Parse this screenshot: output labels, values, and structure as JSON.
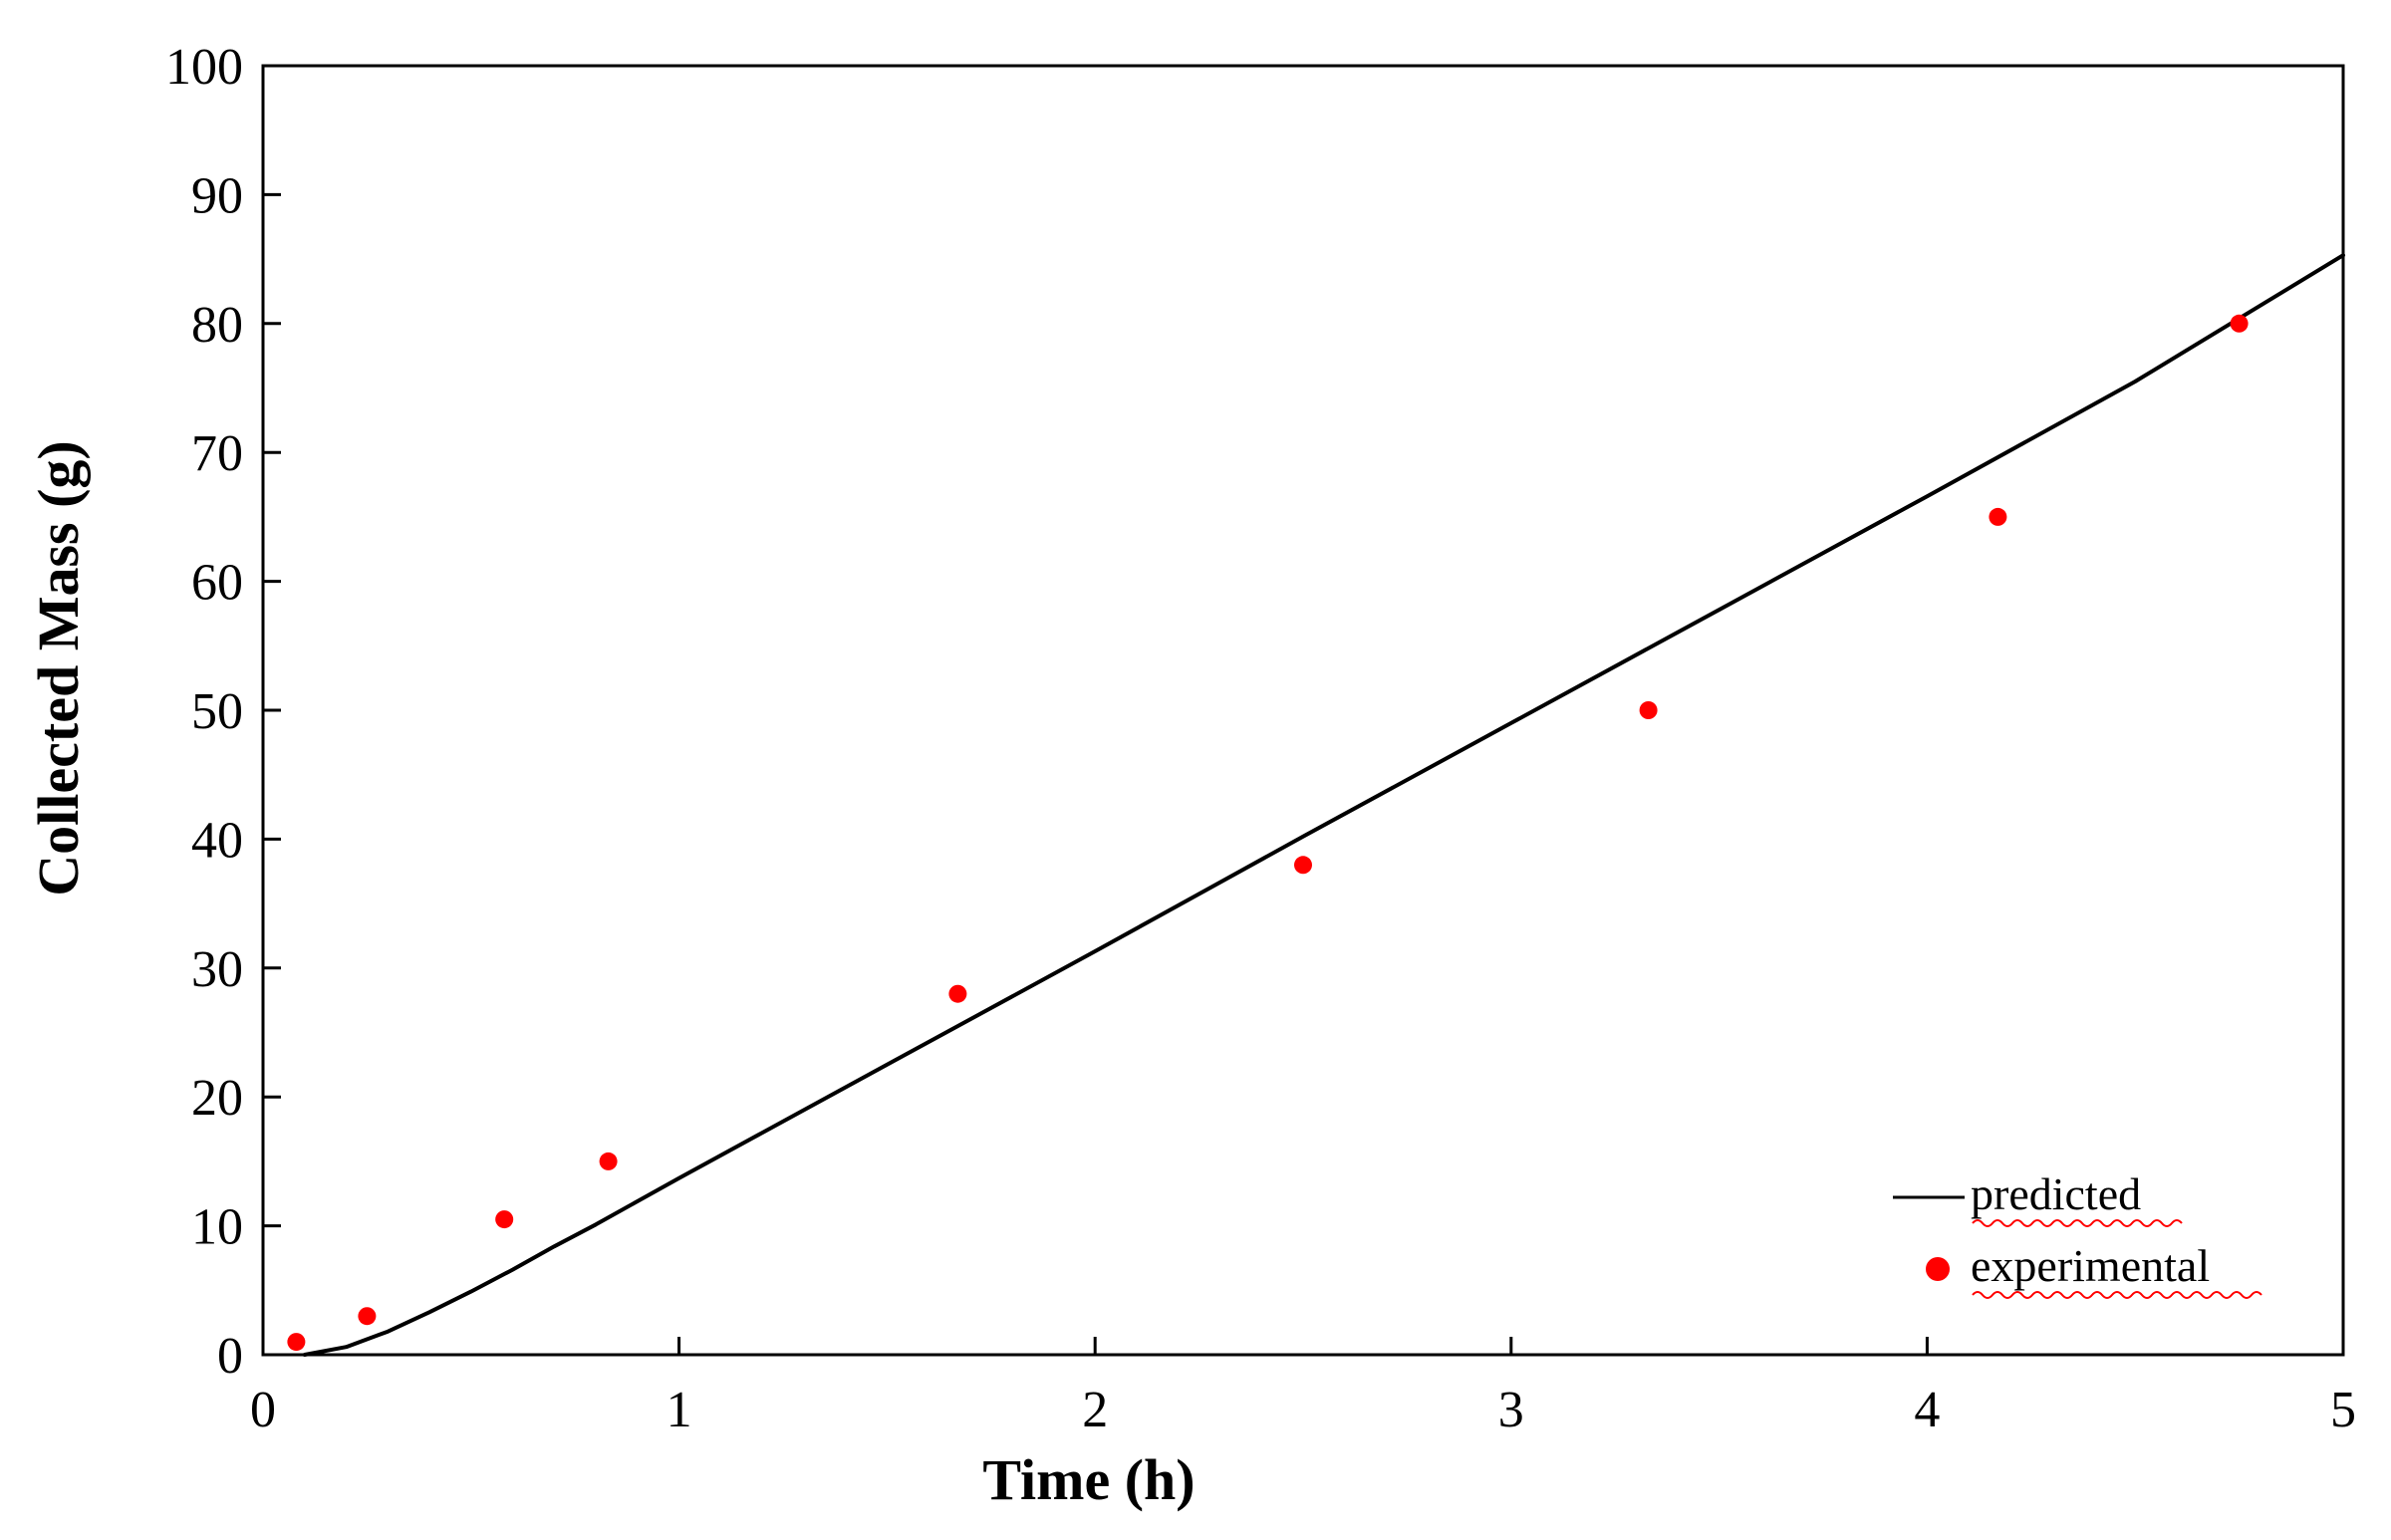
{
  "chart_data": {
    "type": "scatter",
    "title": "",
    "xlabel": "Time (h)",
    "ylabel": "Collected Mass (g)",
    "xlim": [
      0,
      5
    ],
    "ylim": [
      0,
      100
    ],
    "xticks": [
      0,
      1,
      2,
      3,
      4,
      5
    ],
    "yticks": [
      0,
      10,
      20,
      30,
      40,
      50,
      60,
      70,
      80,
      90,
      100
    ],
    "grid": false,
    "legend": {
      "placement": "bottom-right",
      "entries": [
        {
          "label": "predicted",
          "marker": "line",
          "color": "#000000"
        },
        {
          "label": "experimental",
          "marker": "circle",
          "color": "#ff0000"
        }
      ]
    },
    "series": [
      {
        "name": "predicted",
        "style": "line",
        "color": "#000000",
        "x": [
          0.1,
          0.2,
          0.3,
          0.4,
          0.5,
          0.6,
          0.7,
          0.8,
          0.9,
          1.0,
          1.5,
          2.0,
          2.5,
          3.0,
          3.5,
          4.0,
          4.5,
          5.0
        ],
        "y": [
          0,
          0.6,
          1.8,
          3.3,
          4.9,
          6.6,
          8.4,
          10.1,
          11.9,
          13.7,
          22.5,
          31.3,
          40.2,
          49.0,
          57.8,
          66.6,
          75.5,
          85.3
        ]
      },
      {
        "name": "experimental",
        "style": "scatter",
        "color": "#ff0000",
        "x": [
          0.08,
          0.25,
          0.58,
          0.83,
          1.67,
          2.5,
          3.33,
          4.17,
          4.75
        ],
        "y": [
          1,
          3,
          10.5,
          15,
          28,
          38,
          50,
          65,
          80
        ]
      }
    ]
  }
}
